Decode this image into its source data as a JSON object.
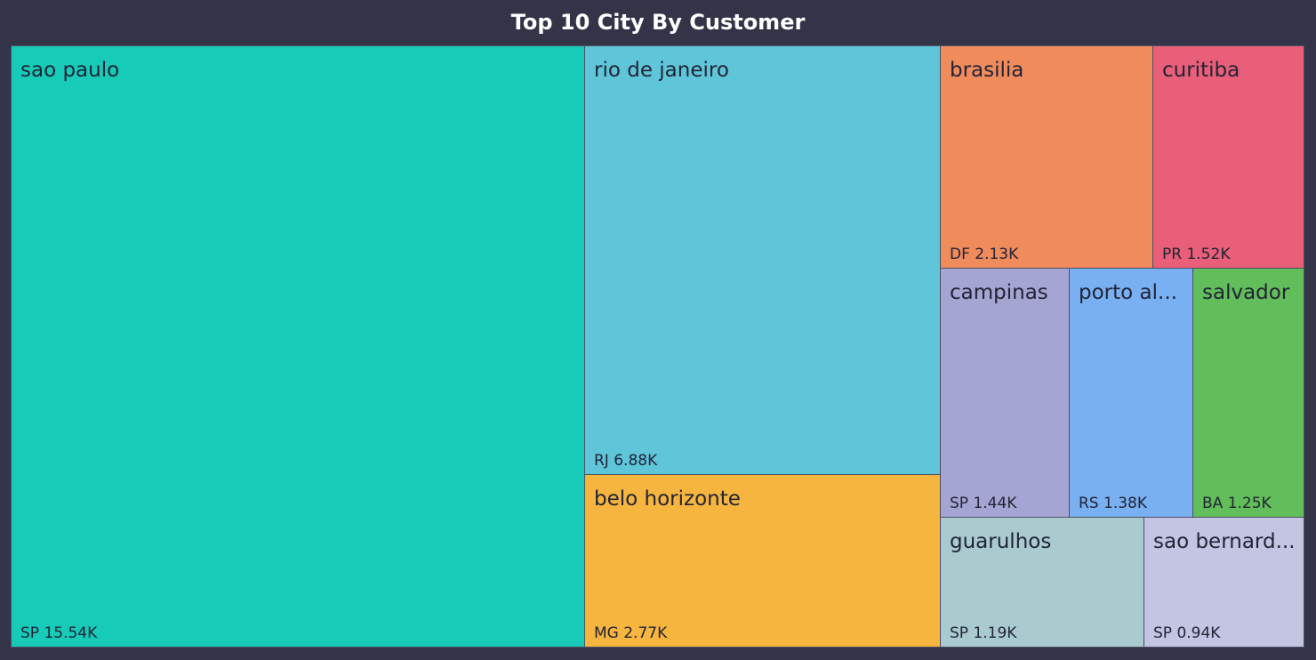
{
  "title": "Top 10 City By Customer",
  "chart_data": {
    "type": "treemap",
    "title": "Top 10 City By Customer",
    "unit": "K",
    "items": [
      {
        "name": "sao paulo",
        "label": "sao paulo",
        "state": "SP",
        "value": 15.54,
        "value_label": "15.54K",
        "color": "#17cbb8"
      },
      {
        "name": "rio de janeiro",
        "label": "rio de janeiro",
        "state": "RJ",
        "value": 6.88,
        "value_label": "6.88K",
        "color": "#5fc5d9"
      },
      {
        "name": "belo horizonte",
        "label": "belo horizonte",
        "state": "MG",
        "value": 2.77,
        "value_label": "2.77K",
        "color": "#f6b53e"
      },
      {
        "name": "brasilia",
        "label": "brasilia",
        "state": "DF",
        "value": 2.13,
        "value_label": "2.13K",
        "color": "#f08b5c"
      },
      {
        "name": "curitiba",
        "label": "curitiba",
        "state": "PR",
        "value": 1.52,
        "value_label": "1.52K",
        "color": "#e95e78"
      },
      {
        "name": "campinas",
        "label": "campinas",
        "state": "SP",
        "value": 1.44,
        "value_label": "1.44K",
        "color": "#a5a5d3"
      },
      {
        "name": "porto alegre",
        "label": "porto al...",
        "state": "RS",
        "value": 1.38,
        "value_label": "1.38K",
        "color": "#78b0f1"
      },
      {
        "name": "salvador",
        "label": "salvador",
        "state": "BA",
        "value": 1.25,
        "value_label": "1.25K",
        "color": "#62be5a"
      },
      {
        "name": "guarulhos",
        "label": "guarulhos",
        "state": "SP",
        "value": 1.19,
        "value_label": "1.19K",
        "color": "#a9cbd0"
      },
      {
        "name": "sao bernardo do campo",
        "label": "sao bernard...",
        "state": "SP",
        "value": 0.94,
        "value_label": "0.94K",
        "color": "#c4c4e3"
      }
    ]
  }
}
